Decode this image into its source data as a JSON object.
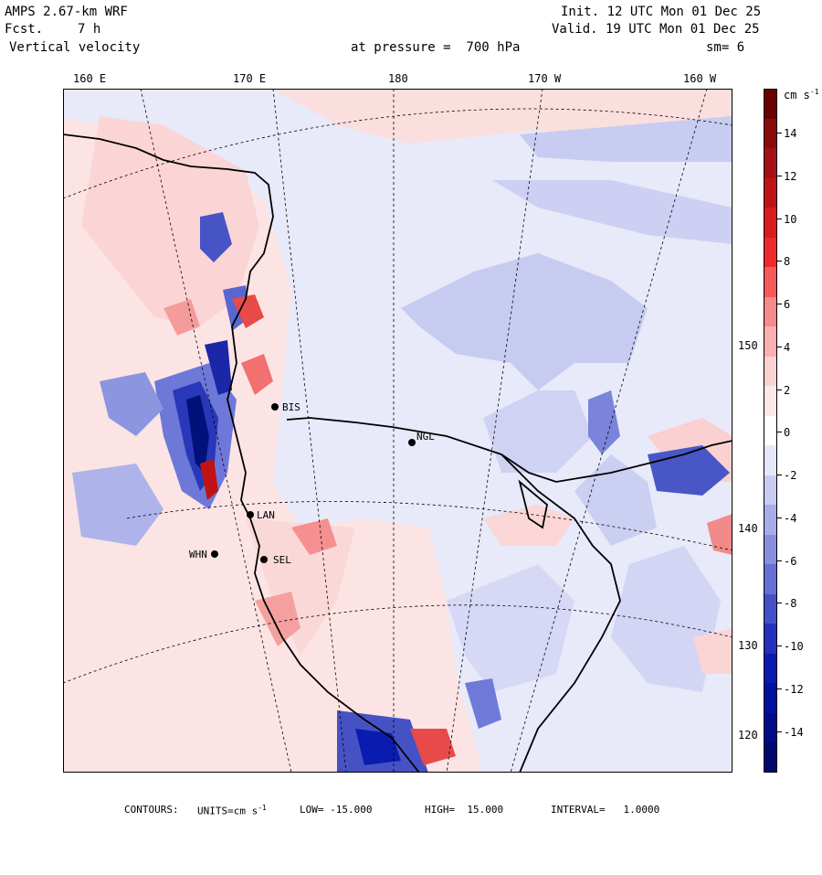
{
  "header": {
    "model": "AMPS 2.67-km WRF",
    "forecast_label": "Fcst.",
    "forecast_hours": "7 h",
    "variable": "Vertical velocity",
    "init": "Init. 12 UTC Mon 01 Dec 25",
    "valid": "Valid. 19 UTC Mon 01 Dec 25",
    "pressure": "at pressure =  700 hPa",
    "smoothing": "sm= 6"
  },
  "axes": {
    "top_longitudes": [
      "160 E",
      "170 E",
      "180",
      "170 W",
      "160 W"
    ],
    "right_longitudes": [
      "150 W",
      "140 W",
      "130 W",
      "120 W"
    ]
  },
  "stations": [
    {
      "id": "BIS"
    },
    {
      "id": "NGL"
    },
    {
      "id": "LAN"
    },
    {
      "id": "WHN"
    },
    {
      "id": "SEL"
    }
  ],
  "colorbar": {
    "units": "cm s",
    "units_exp": "-1",
    "ticks": [
      "14",
      "12",
      "10",
      "8",
      "6",
      "4",
      "2",
      "0",
      "-2",
      "-4",
      "-6",
      "-8",
      "-10",
      "-12",
      "-14"
    ],
    "colors": [
      "#6b0000",
      "#8b0a0a",
      "#a50f15",
      "#c01414",
      "#d91c1c",
      "#ee2a2a",
      "#f55a5a",
      "#f78a8a",
      "#f9b0b0",
      "#fbd2d2",
      "#fde8e8",
      "#ffffff",
      "#e6e8fa",
      "#c9ccf2",
      "#a8ace8",
      "#8890de",
      "#6670d4",
      "#4450c8",
      "#2232bc",
      "#0a1cb0",
      "#0012a0",
      "#000c88",
      "#00086e"
    ]
  },
  "footer": {
    "contours": "CONTOURS:",
    "units": "UNITS=cm s",
    "units_exp": "-1",
    "low": "LOW= -15.000",
    "high": "HIGH=  15.000",
    "interval": "INTERVAL=   1.0000"
  }
}
